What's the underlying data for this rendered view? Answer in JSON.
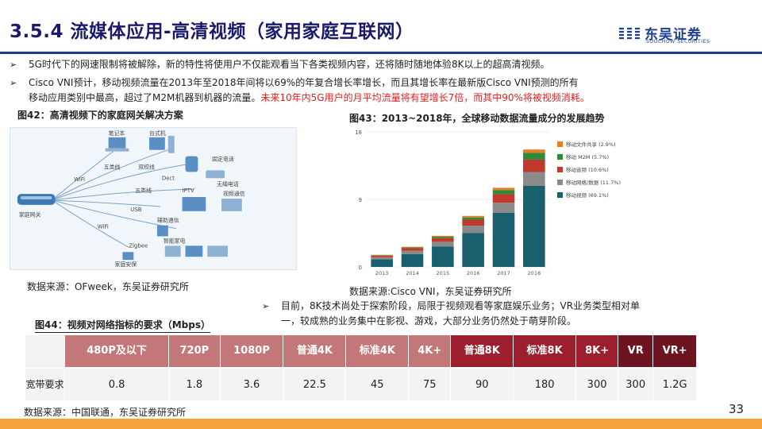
{
  "header": {
    "title": "3.5.4 流媒体应用-高清视频（家用家庭互联网）"
  },
  "logo": {
    "name": "东吴证券",
    "sub": "SOOCHOW SECURITIES"
  },
  "bullets": [
    {
      "mark": "➢",
      "text": "5G时代下的网速限制将被解除，新的特性将使用户不仅能观看当下各类视频内容，还将随时随地体验8K以上的超高清视频。"
    },
    {
      "mark": "➢",
      "line1": "Cisco VNI预计，移动视频流量在2013年至2018年间将以69%的年复合增长率增长，而且其增长率在最新版Cisco VNI预测的所有",
      "line2": "移动应用类别中最高，超过了M2M机器到机器的流量。",
      "line2_red": "未来10年内5G用户的月平均流量将有望增长7倍，而其中90%将被视频消耗。"
    },
    {
      "mark": "➢",
      "line1": "目前，8K技术尚处于探索阶段，局限于视频观看等家庭娱乐业务；VR业务类型相对单",
      "line2": "一，较成熟的业务集中在影视、游戏，大部分业务仍然处于萌芽阶段。"
    }
  ],
  "figures": {
    "fig42": {
      "caption": "图42：高清视频下的家庭网关解决方案",
      "source": "数据来源：OFweek，东吴证券研究所"
    },
    "fig43": {
      "caption": "图43：2013~2018年，全球移动数据流量成分的发展趋势",
      "source": "数据来源:Cisco VNI，东吴证券研究所"
    },
    "fig44": {
      "caption": "图44：视频对网络指标的要求（Mbps）",
      "source": "数据来源：中国联通，东吴证券研究所"
    }
  },
  "diagram": {
    "labels": {
      "notebook": "笔记本",
      "desktop": "台式机",
      "wuxian": "五类线",
      "shuangjiao": "双绞线",
      "dect": "Dect",
      "fixed_phone": "固定电话",
      "wifi1": "WiFi",
      "cordless": "无绳电话",
      "wuxian2": "五类线",
      "iptv": "IPTV",
      "video_comm": "视频通信",
      "gateway": "家庭网关",
      "usb": "USB",
      "aux_comm": "辅助通信",
      "wifi2": "WiFi",
      "zigbee": "Zigbee",
      "smart_home": "智能家电",
      "security": "家庭安保"
    }
  },
  "chart_data": {
    "type": "bar",
    "stacked": true,
    "categories": [
      "2013",
      "2014",
      "2015",
      "2016",
      "2017",
      "2018"
    ],
    "ylim": [
      0,
      18
    ],
    "yticks": [
      0,
      9,
      18
    ],
    "series": [
      {
        "name": "移动视频 (69.1%)",
        "color": "#1a5f6e",
        "values": [
          1.0,
          1.7,
          2.7,
          4.5,
          7.2,
          10.8
        ]
      },
      {
        "name": "移动网络/数据 (11.7%)",
        "color": "#8a8a8a",
        "values": [
          0.3,
          0.45,
          0.65,
          1.0,
          1.35,
          1.85
        ]
      },
      {
        "name": "移动音频 (10.6%)",
        "color": "#c0392b",
        "values": [
          0.2,
          0.35,
          0.5,
          0.8,
          1.15,
          1.65
        ]
      },
      {
        "name": "移动 M2M (5.7%)",
        "color": "#2e8b3a",
        "values": [
          0.06,
          0.1,
          0.17,
          0.3,
          0.55,
          0.9
        ]
      },
      {
        "name": "移动文件共享 (2.9%)",
        "color": "#e67e22",
        "values": [
          0.06,
          0.08,
          0.12,
          0.2,
          0.3,
          0.45
        ]
      }
    ],
    "legend": "right"
  },
  "table": {
    "row_label": "宽带要求",
    "columns": [
      {
        "label": "480P及以下",
        "value": "0.8",
        "color": "#c27878"
      },
      {
        "label": "720P",
        "value": "1.8",
        "color": "#c27878"
      },
      {
        "label": "1080P",
        "value": "3.6",
        "color": "#c27878"
      },
      {
        "label": "普通4K",
        "value": "22.5",
        "color": "#c27878"
      },
      {
        "label": "标准4K",
        "value": "45",
        "color": "#c27878"
      },
      {
        "label": "4K+",
        "value": "75",
        "color": "#c27878"
      },
      {
        "label": "普通8K",
        "value": "90",
        "color": "#9b1f2d"
      },
      {
        "label": "标准8K",
        "value": "180",
        "color": "#9b1f2d"
      },
      {
        "label": "8K+",
        "value": "300",
        "color": "#9b1f2d"
      },
      {
        "label": "VR",
        "value": "300",
        "color": "#6e1420"
      },
      {
        "label": "VR+",
        "value": "1.2G",
        "color": "#6e1420"
      }
    ]
  },
  "footer": {
    "page": "33"
  }
}
